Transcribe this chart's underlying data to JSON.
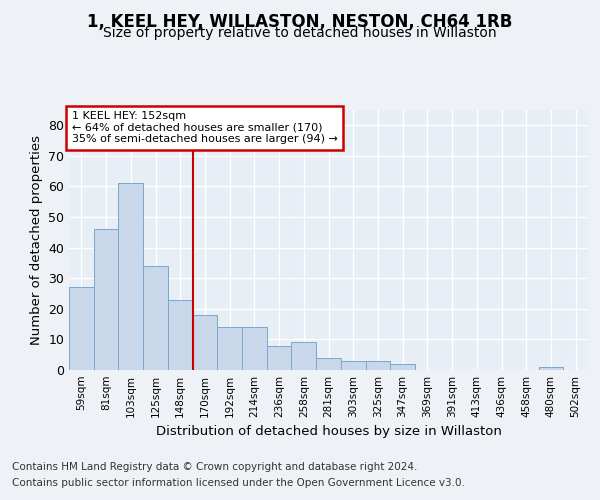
{
  "title1": "1, KEEL HEY, WILLASTON, NESTON, CH64 1RB",
  "title2": "Size of property relative to detached houses in Willaston",
  "xlabel": "Distribution of detached houses by size in Willaston",
  "ylabel": "Number of detached properties",
  "categories": [
    "59sqm",
    "81sqm",
    "103sqm",
    "125sqm",
    "148sqm",
    "170sqm",
    "192sqm",
    "214sqm",
    "236sqm",
    "258sqm",
    "281sqm",
    "303sqm",
    "325sqm",
    "347sqm",
    "369sqm",
    "391sqm",
    "413sqm",
    "436sqm",
    "458sqm",
    "480sqm",
    "502sqm"
  ],
  "values": [
    27,
    46,
    61,
    34,
    23,
    18,
    14,
    14,
    8,
    9,
    4,
    3,
    3,
    2,
    0,
    0,
    0,
    0,
    0,
    1,
    0
  ],
  "bar_color": "#c8d8ea",
  "bar_edge_color": "#7aa8c8",
  "annotation_line1": "1 KEEL HEY: 152sqm",
  "annotation_line2": "← 64% of detached houses are smaller (170)",
  "annotation_line3": "35% of semi-detached houses are larger (94) →",
  "footer1": "Contains HM Land Registry data © Crown copyright and database right 2024.",
  "footer2": "Contains public sector information licensed under the Open Government Licence v3.0.",
  "ylim": [
    0,
    85
  ],
  "yticks": [
    0,
    10,
    20,
    30,
    40,
    50,
    60,
    70,
    80
  ],
  "vline_bin": 4,
  "background_color": "#eef2f7",
  "plot_background": "#e8eef5",
  "grid_color": "#ffffff"
}
